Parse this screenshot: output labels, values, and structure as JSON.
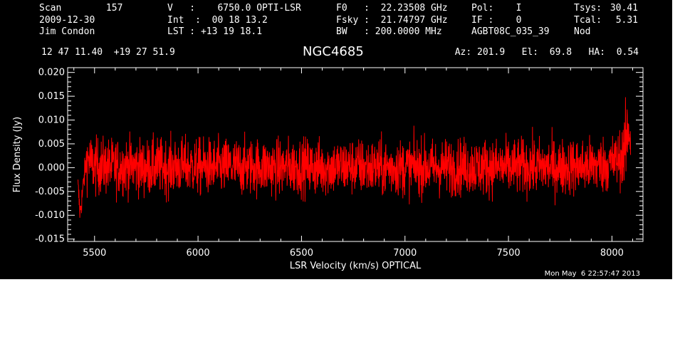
{
  "header": {
    "col1": [
      "Scan        157",
      "2009-12-30",
      "Jim Condon"
    ],
    "col2": [
      "V   :    6750.0 OPTI-LSR",
      "Int  :  00 18 13.2",
      "LST : +13 19 18.1"
    ],
    "col3": [
      "F0   :  22.23508 GHz",
      "Fsky :  21.74797 GHz",
      "BW   : 200.0000 MHz"
    ],
    "col4": [
      "Pol:    I",
      "IF :    0",
      "AGBT08C_035_39"
    ],
    "col5a": [
      "Tsys:",
      "Tcal:",
      "Nod"
    ],
    "col5b": [
      "30.41",
      "5.31",
      ""
    ],
    "coords": "12 47 11.40  +19 27 51.9",
    "source": "NGC4685",
    "pointing": "Az: 201.9   El:  69.8   HA:  0.54",
    "timestamp": "Mon May  6 22:57:47 2013"
  },
  "colors": {
    "background": "#000000",
    "axes": "#ffffff",
    "trace": "#ff0000",
    "page": "#ffffff"
  },
  "chart_data": {
    "type": "line",
    "title": "NGC4685",
    "xlabel": "LSR Velocity (km/s) OPTICAL",
    "ylabel": "Flux Density (Jy)",
    "xlim": [
      5370,
      8150
    ],
    "ylim": [
      -0.0155,
      0.021
    ],
    "xticks": [
      5500,
      6000,
      6500,
      7000,
      7500,
      8000
    ],
    "yticks": [
      -0.015,
      -0.01,
      -0.005,
      0.0,
      0.005,
      0.01,
      0.015,
      0.02
    ],
    "ytick_labels": [
      "-0.015",
      "-0.010",
      "-0.005",
      "0.000",
      "0.005",
      "0.010",
      "0.015",
      "0.020"
    ],
    "grid": false,
    "legend": "none",
    "series": [
      {
        "x": [
          5420,
          5430,
          5440,
          5450,
          5460,
          5470,
          5480,
          5500,
          5550,
          5600,
          5650,
          5700,
          5750,
          5800,
          5850,
          5900,
          5950,
          6000,
          6050,
          6100,
          6150,
          6200,
          6250,
          6300,
          6350,
          6400,
          6450,
          6500,
          6550,
          6600,
          6650,
          6700,
          6750,
          6800,
          6850,
          6900,
          6950,
          7000,
          7050,
          7100,
          7150,
          7200,
          7250,
          7300,
          7350,
          7400,
          7450,
          7500,
          7550,
          7600,
          7650,
          7700,
          7750,
          7800,
          7850,
          7900,
          7950,
          8000,
          8020,
          8040,
          8060,
          8070,
          8080,
          8090
        ],
        "y": [
          -0.004,
          -0.0095,
          -0.006,
          -0.002,
          0.001,
          0.002,
          0.001,
          0.0002,
          0.0003,
          0.0001,
          0.0004,
          0.0002,
          -0.0001,
          0.0003,
          0.0001,
          0.0002,
          0.0004,
          0.0001,
          0.0002,
          0.0,
          0.0003,
          0.0001,
          0.0002,
          0.0002,
          0.0001,
          -0.0001,
          0.0002,
          0.0003,
          0.0001,
          0.0,
          0.0002,
          0.0001,
          0.0003,
          0.0001,
          0.0,
          -0.0001,
          0.0001,
          0.0,
          0.0002,
          0.0001,
          0.0,
          0.0002,
          0.0001,
          0.0003,
          0.0001,
          0.0002,
          0.0001,
          0.0,
          0.0002,
          0.0003,
          0.0001,
          0.0002,
          0.0,
          0.0003,
          0.0002,
          0.0004,
          0.0006,
          0.001,
          0.0015,
          0.002,
          0.0035,
          0.005,
          0.009,
          0.006
        ],
        "noise_rms": 0.003
      }
    ]
  }
}
